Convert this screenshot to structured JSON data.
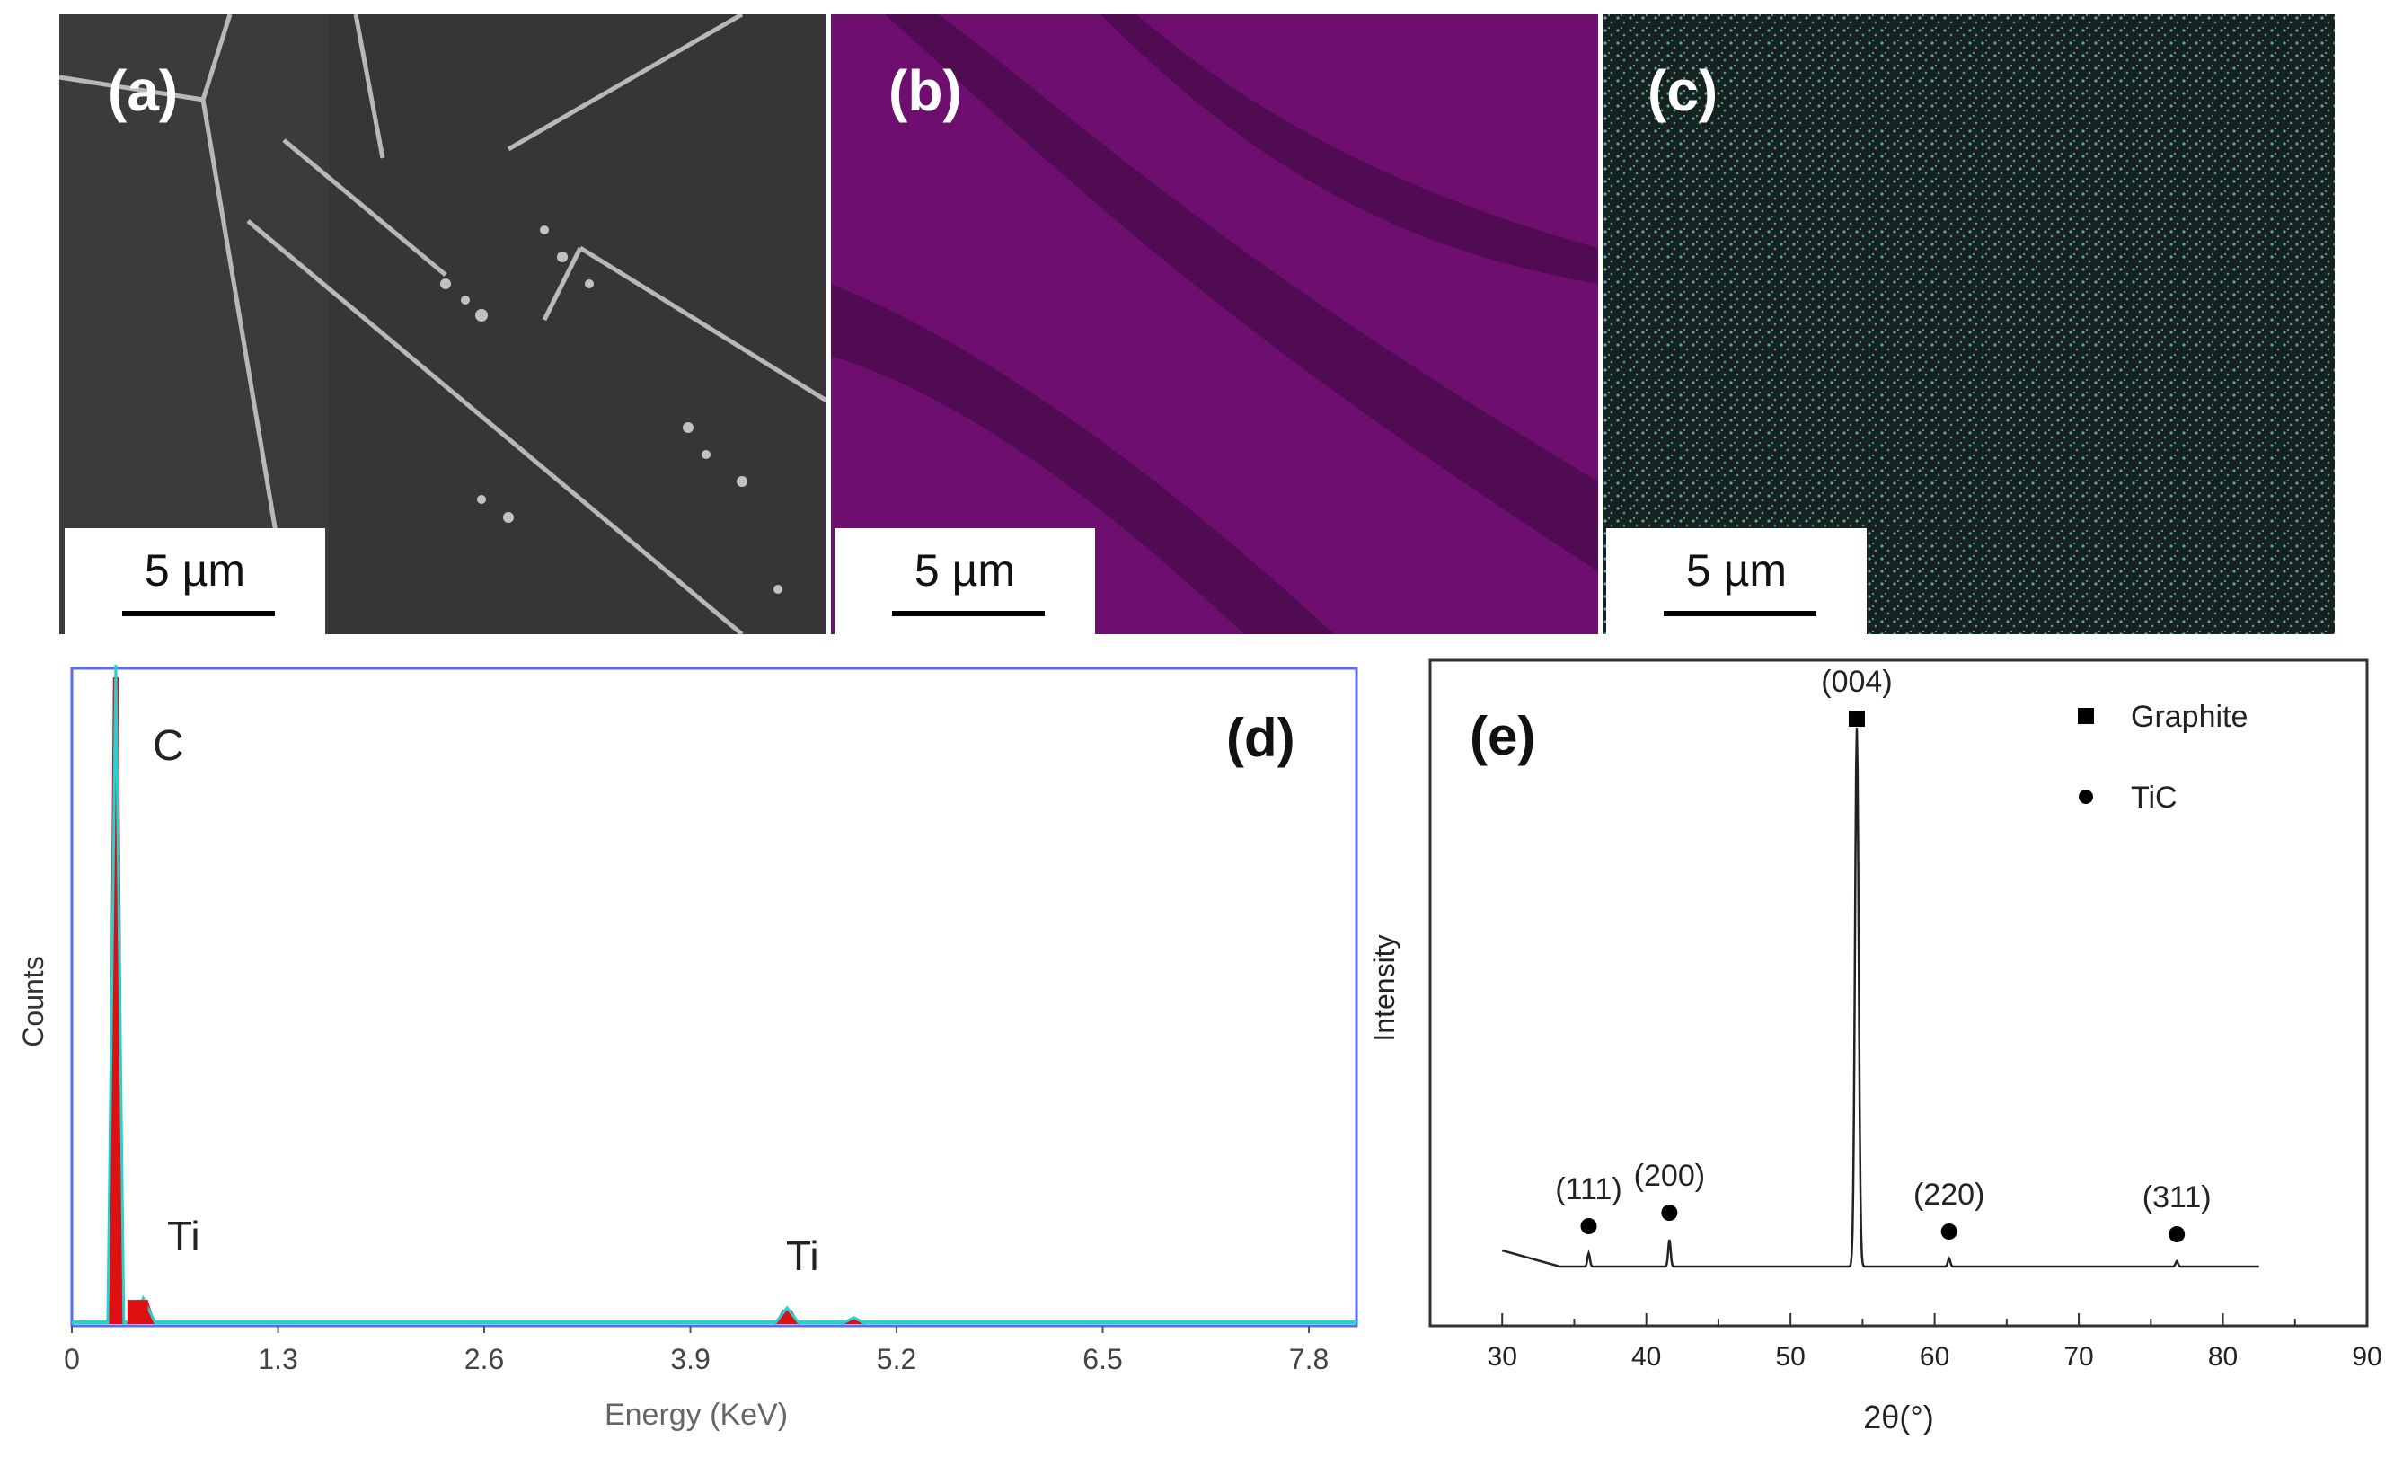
{
  "panels": {
    "a": {
      "label": "(a)",
      "scale": "5 µm",
      "colors": {
        "bg": "#3a3a3a",
        "line": "#c9c9c9"
      }
    },
    "b": {
      "label": "(b)",
      "scale": "5 µm",
      "colors": {
        "bg": "#6e0e6e",
        "dark": "#3b0a3e"
      }
    },
    "c": {
      "label": "(c)",
      "scale": "5 µm",
      "colors": {
        "bg": "#15221f",
        "dot": "#5fa8a0"
      }
    }
  },
  "chart_data": [
    {
      "type": "line",
      "panel_label": "(d)",
      "xlabel": "Energy (KeV)",
      "ylabel": "Counts",
      "xlim": [
        0,
        8.1
      ],
      "ylim": [
        0,
        100
      ],
      "x_ticks": [
        "0",
        "1.3",
        "2.6",
        "3.9",
        "5.2",
        "6.5",
        "7.8"
      ],
      "annotations": [
        "C",
        "Ti",
        "Ti"
      ],
      "peaks": [
        {
          "element": "C",
          "energy": 0.277,
          "height": 100
        },
        {
          "element": "Ti",
          "energy": 0.45,
          "height": 4
        },
        {
          "element": "Ti",
          "energy": 4.51,
          "height": 2.5
        },
        {
          "element": "Ti",
          "energy": 4.93,
          "height": 1
        }
      ],
      "colors": {
        "frame": "#5b6cf0",
        "fill": "#dd1111",
        "trace": "#22d3d3"
      }
    },
    {
      "type": "line",
      "panel_label": "(e)",
      "xlabel": "2θ(°)",
      "ylabel": "Intensity",
      "xlim": [
        25,
        90
      ],
      "ylim": [
        0,
        100
      ],
      "x_ticks": [
        "30",
        "40",
        "50",
        "60",
        "70",
        "80",
        "90"
      ],
      "legend": [
        {
          "marker": "square",
          "label": "Graphite"
        },
        {
          "marker": "circle",
          "label": "TiC"
        }
      ],
      "legend_position": "top-right",
      "peaks": [
        {
          "two_theta": 36.0,
          "hkl": "(111)",
          "phase": "TiC",
          "height": 2.5
        },
        {
          "two_theta": 41.6,
          "hkl": "(200)",
          "phase": "TiC",
          "height": 5
        },
        {
          "two_theta": 54.6,
          "hkl": "(004)",
          "phase": "Graphite",
          "height": 100
        },
        {
          "two_theta": 61.0,
          "hkl": "(220)",
          "phase": "TiC",
          "height": 1.5
        },
        {
          "two_theta": 76.8,
          "hkl": "(311)",
          "phase": "TiC",
          "height": 1
        }
      ],
      "colors": {
        "line": "#222222"
      }
    }
  ]
}
